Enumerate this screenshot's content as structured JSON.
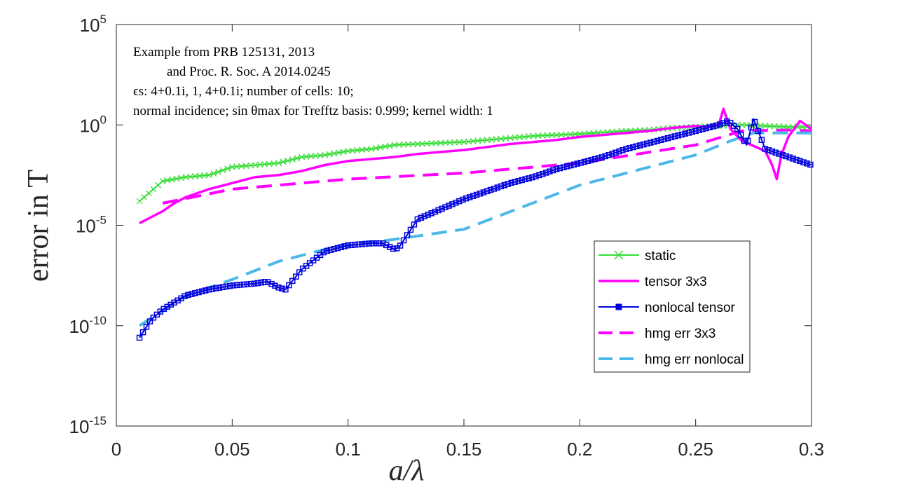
{
  "chart_data": {
    "type": "line",
    "x_scale": "linear",
    "y_scale": "log",
    "xlabel": "a/λ",
    "ylabel": "error in T",
    "xlim": [
      0,
      0.3
    ],
    "ylim_exponent": [
      -15,
      5
    ],
    "x_ticks": [
      "0",
      "0.05",
      "0.1",
      "0.15",
      "0.2",
      "0.25",
      "0.3"
    ],
    "y_ticks": [
      {
        "base": "10",
        "exp": "5",
        "value_exp": 5
      },
      {
        "base": "10",
        "exp": "0",
        "value_exp": 0
      },
      {
        "base": "10",
        "exp": "-5",
        "value_exp": -5
      },
      {
        "base": "10",
        "exp": "-10",
        "value_exp": -10
      },
      {
        "base": "10",
        "exp": "-15",
        "value_exp": -15
      }
    ],
    "annotation": [
      "Example from PRB 125131, 2013",
      "and Proc. R. Soc. A 2014.0245",
      "ϵs: 4+0.1i, 1, 4+0.1i; number of cells: 10;",
      "normal incidence; sin θmax for Trefftz basis: 0.999; kernel width: 1"
    ],
    "legend_position": "right",
    "series": [
      {
        "name": "static",
        "color": "#33dd33",
        "style": "solid-x",
        "x": [
          0.01,
          0.02,
          0.03,
          0.04,
          0.05,
          0.06,
          0.07,
          0.08,
          0.09,
          0.1,
          0.11,
          0.12,
          0.13,
          0.14,
          0.15,
          0.16,
          0.17,
          0.18,
          0.19,
          0.2,
          0.21,
          0.22,
          0.23,
          0.24,
          0.25,
          0.26,
          0.27,
          0.28,
          0.29,
          0.3
        ],
        "log10_y": [
          -3.8,
          -2.8,
          -2.6,
          -2.5,
          -2.1,
          -2.0,
          -1.9,
          -1.6,
          -1.5,
          -1.3,
          -1.2,
          -1.0,
          -0.95,
          -0.9,
          -0.85,
          -0.75,
          -0.65,
          -0.55,
          -0.5,
          -0.45,
          -0.38,
          -0.3,
          -0.25,
          -0.15,
          -0.1,
          -0.05,
          0.0,
          -0.05,
          -0.1,
          -0.1
        ]
      },
      {
        "name": "tensor 3x3",
        "color": "#ff00ff",
        "style": "solid",
        "x": [
          0.01,
          0.015,
          0.02,
          0.025,
          0.03,
          0.04,
          0.05,
          0.06,
          0.07,
          0.08,
          0.09,
          0.1,
          0.11,
          0.12,
          0.13,
          0.14,
          0.15,
          0.16,
          0.17,
          0.18,
          0.19,
          0.2,
          0.21,
          0.22,
          0.23,
          0.24,
          0.25,
          0.255,
          0.26,
          0.262,
          0.265,
          0.27,
          0.28,
          0.283,
          0.285,
          0.287,
          0.29,
          0.295,
          0.3
        ],
        "log10_y": [
          -4.9,
          -4.6,
          -4.3,
          -3.9,
          -3.6,
          -3.2,
          -2.9,
          -2.6,
          -2.5,
          -2.3,
          -2.0,
          -1.8,
          -1.7,
          -1.6,
          -1.45,
          -1.35,
          -1.25,
          -1.1,
          -0.95,
          -0.85,
          -0.75,
          -0.6,
          -0.5,
          -0.4,
          -0.3,
          -0.15,
          -0.05,
          -0.1,
          0.0,
          0.8,
          -0.2,
          -0.8,
          -1.3,
          -2.0,
          -2.7,
          -1.5,
          -0.6,
          0.2,
          -0.2
        ]
      },
      {
        "name": "nonlocal tensor",
        "color": "#0000dd",
        "style": "solid-square",
        "x": [
          0.01,
          0.015,
          0.02,
          0.03,
          0.04,
          0.05,
          0.06,
          0.065,
          0.07,
          0.073,
          0.08,
          0.09,
          0.1,
          0.11,
          0.115,
          0.12,
          0.122,
          0.13,
          0.14,
          0.15,
          0.16,
          0.17,
          0.18,
          0.19,
          0.2,
          0.21,
          0.22,
          0.23,
          0.24,
          0.25,
          0.26,
          0.264,
          0.268,
          0.272,
          0.275,
          0.28,
          0.29,
          0.3
        ],
        "log10_y": [
          -10.6,
          -9.7,
          -9.2,
          -8.5,
          -8.2,
          -8.0,
          -7.9,
          -7.8,
          -8.1,
          -8.2,
          -7.2,
          -6.3,
          -6.0,
          -5.9,
          -5.9,
          -6.2,
          -6.1,
          -4.7,
          -4.2,
          -3.7,
          -3.3,
          -2.9,
          -2.6,
          -2.2,
          -1.9,
          -1.6,
          -1.2,
          -0.9,
          -0.6,
          -0.3,
          0.0,
          0.2,
          -0.2,
          -1.0,
          0.3,
          -1.2,
          -1.6,
          -2.0
        ]
      },
      {
        "name": "hmg err 3x3",
        "color": "#ff00ff",
        "style": "dashed",
        "x": [
          0.02,
          0.05,
          0.1,
          0.15,
          0.2,
          0.25,
          0.27,
          0.29,
          0.3
        ],
        "log10_y": [
          -3.9,
          -3.2,
          -2.7,
          -2.4,
          -1.9,
          -1.0,
          -0.3,
          -0.25,
          -0.3
        ]
      },
      {
        "name": "hmg err nonlocal",
        "color": "#4db8e8",
        "style": "dashed",
        "x": [
          0.01,
          0.03,
          0.05,
          0.07,
          0.09,
          0.1,
          0.12,
          0.15,
          0.2,
          0.25,
          0.265,
          0.275,
          0.3
        ],
        "log10_y": [
          -10.0,
          -8.5,
          -7.7,
          -6.8,
          -6.2,
          -6.0,
          -5.7,
          -5.2,
          -3.0,
          -1.5,
          -0.8,
          -0.4,
          -0.4
        ]
      }
    ]
  }
}
